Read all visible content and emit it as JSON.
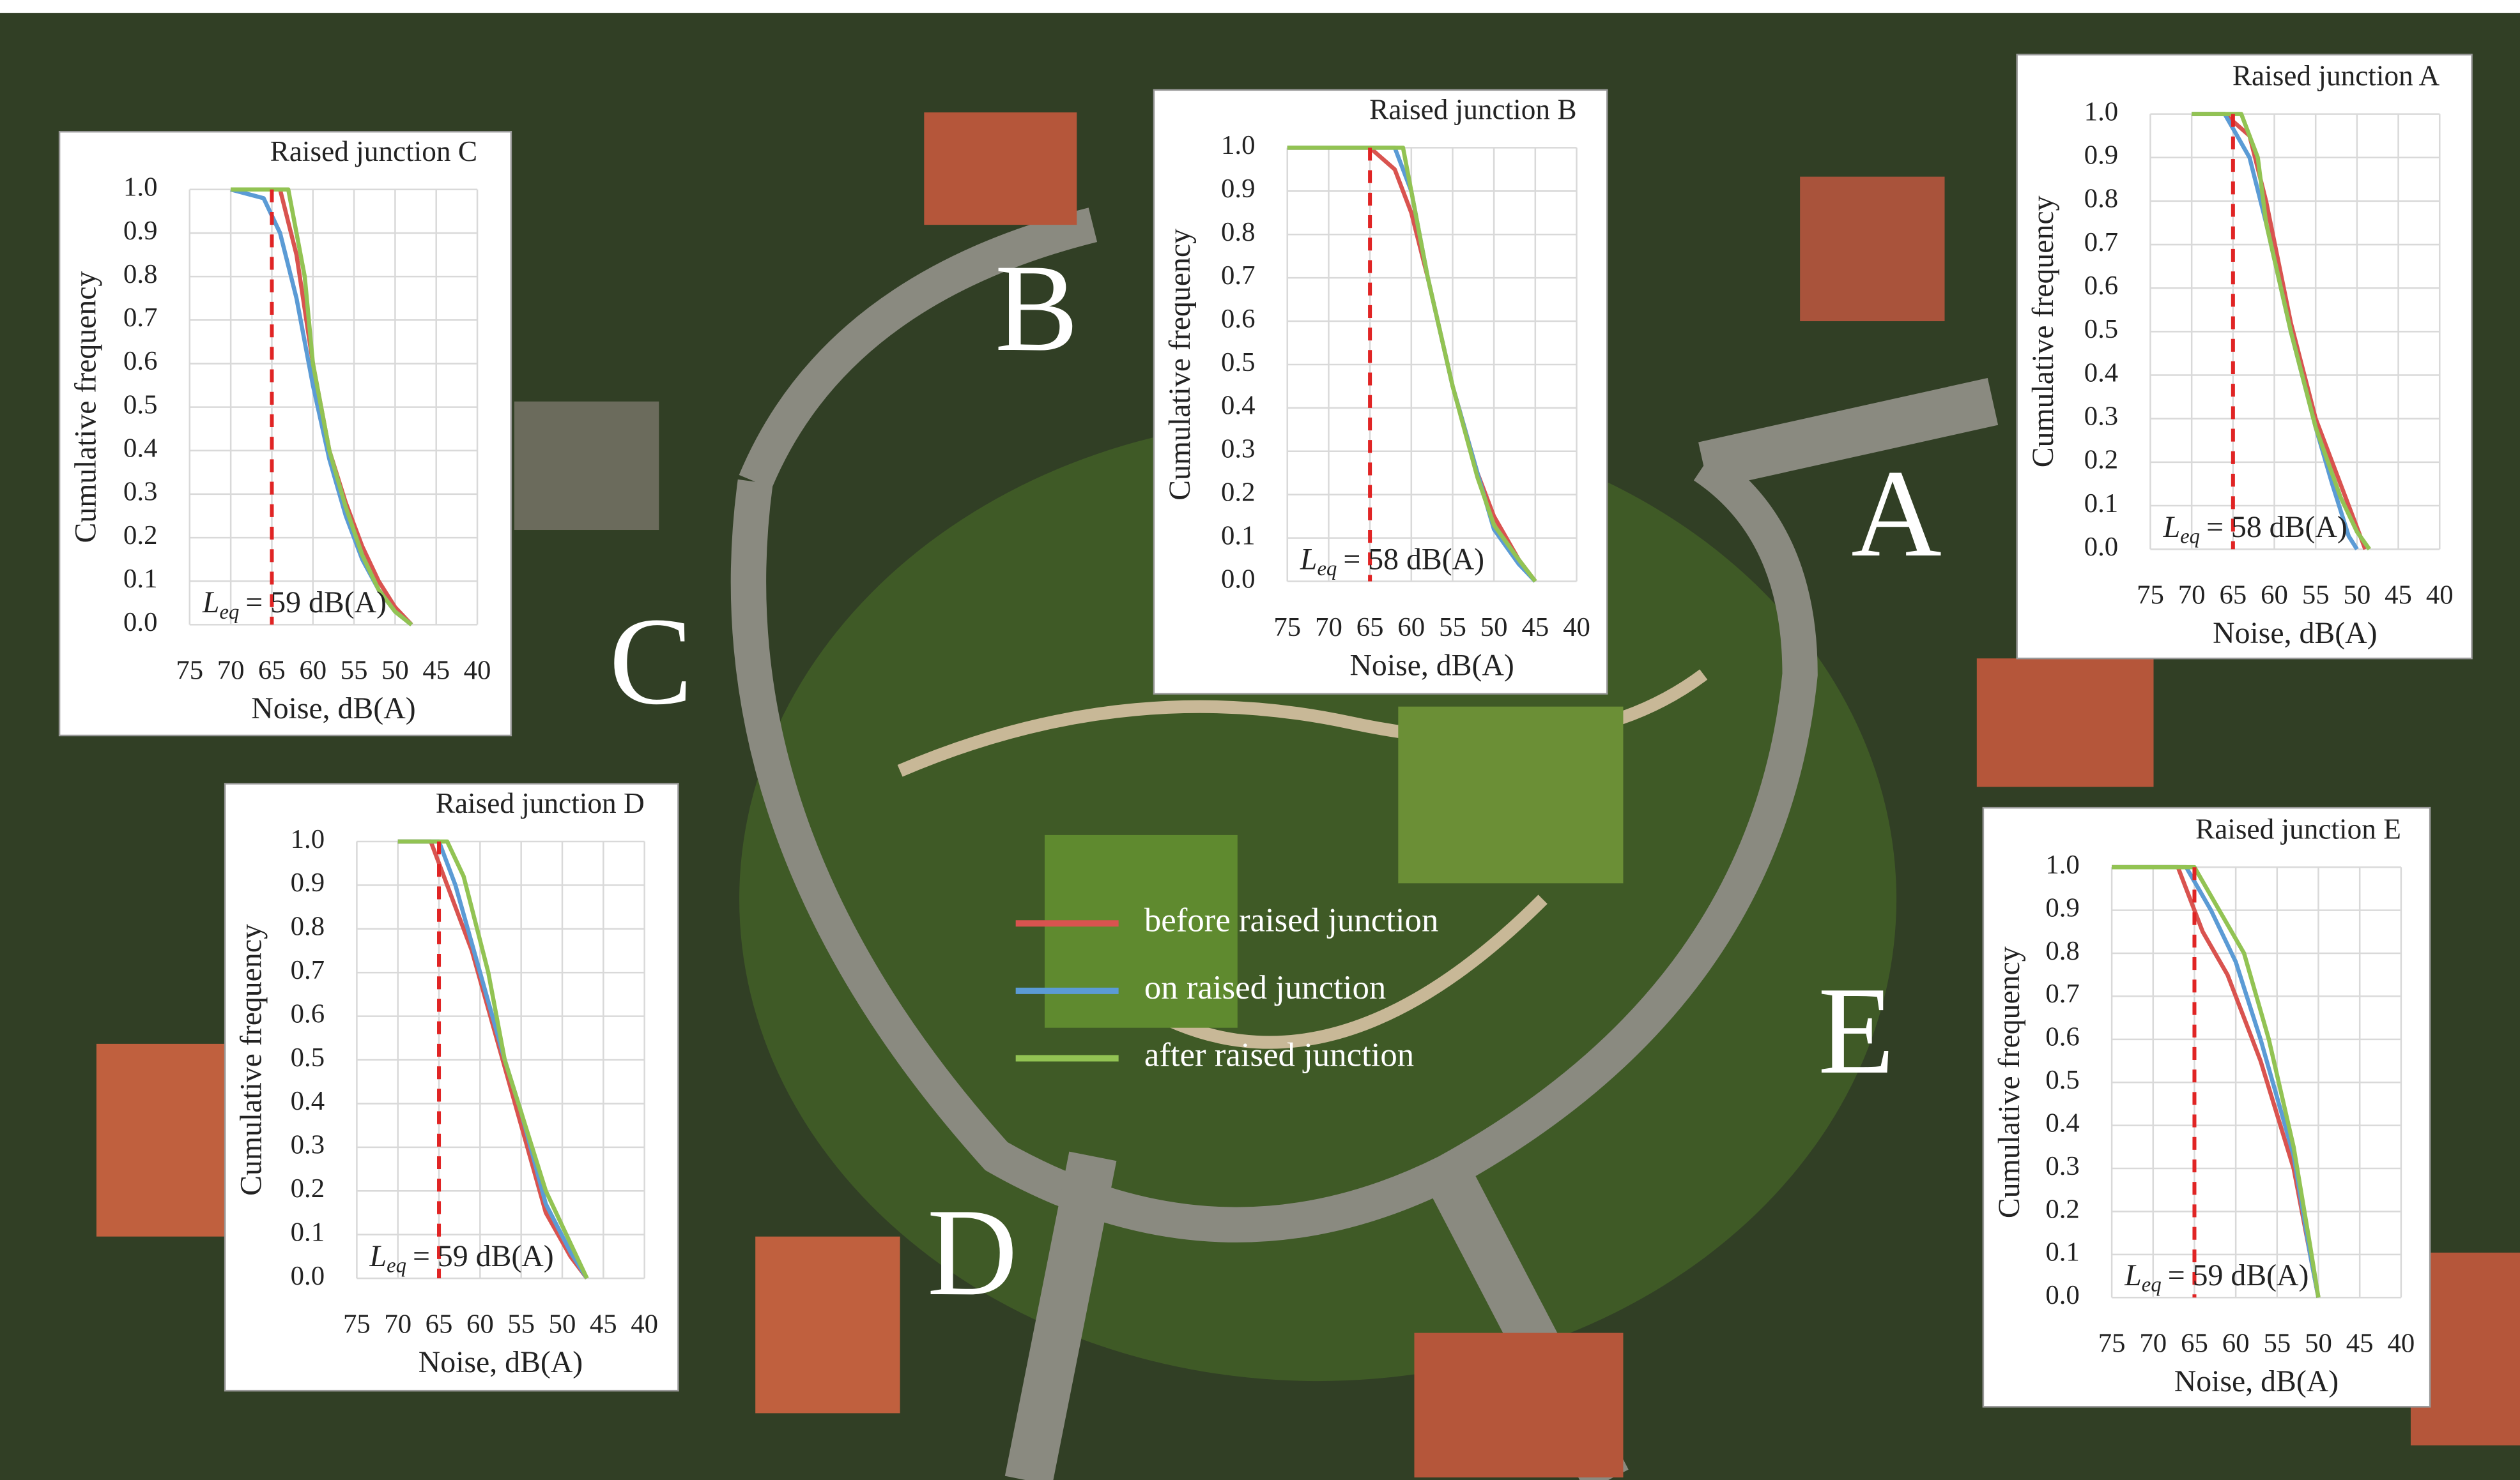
{
  "chart_data": [
    {
      "type": "line",
      "title": "Raised junction A",
      "xlabel": "Noise, dB(A)",
      "ylabel": "Cumulative frequency",
      "xlim": [
        75,
        40
      ],
      "xticks": [
        75,
        70,
        65,
        60,
        55,
        50,
        45,
        40
      ],
      "ylim": [
        0,
        1
      ],
      "yticks": [
        {
          "value": 0,
          "label": "0.0"
        },
        {
          "value": 0.1,
          "label": "0.1"
        },
        {
          "value": 0.2,
          "label": "0.2"
        },
        {
          "value": 0.3,
          "label": "0.3"
        },
        {
          "value": 0.4,
          "label": "0.4"
        },
        {
          "value": 0.5,
          "label": "0.5"
        },
        {
          "value": 0.6,
          "label": "0.6"
        },
        {
          "value": 0.7,
          "label": "0.7"
        },
        {
          "value": 0.8,
          "label": "0.8"
        },
        {
          "value": 0.9,
          "label": "0.9"
        },
        {
          "value": 1,
          "label": "1.0"
        }
      ],
      "grid": true,
      "annotation": {
        "symbol": "L",
        "subscript": "eq",
        "text": "= 58 dB(A)"
      },
      "reference_line": {
        "x": 65,
        "color": "#e02424"
      },
      "series": [
        {
          "color": "#d9534f",
          "x": [
            70,
            66,
            63,
            61,
            58,
            55,
            52,
            50,
            49
          ],
          "values": [
            1,
            1,
            0.95,
            0.8,
            0.52,
            0.3,
            0.15,
            0.05,
            0
          ]
        },
        {
          "color": "#5b9bd5",
          "x": [
            70,
            66,
            63,
            61,
            58,
            55,
            53,
            51,
            50
          ],
          "values": [
            1,
            1,
            0.9,
            0.75,
            0.5,
            0.28,
            0.15,
            0.03,
            0
          ]
        },
        {
          "color": "#92c353",
          "x": [
            70,
            64,
            62,
            61,
            58,
            55,
            52,
            50,
            48.5
          ],
          "values": [
            1,
            1,
            0.9,
            0.75,
            0.5,
            0.28,
            0.12,
            0.04,
            0
          ]
        }
      ]
    },
    {
      "type": "line",
      "title": "Raised junction B",
      "xlabel": "Noise, dB(A)",
      "ylabel": "Cumulative frequency",
      "xlim": [
        75,
        40
      ],
      "xticks": [
        75,
        70,
        65,
        60,
        55,
        50,
        45,
        40
      ],
      "ylim": [
        0,
        1
      ],
      "yticks": [
        {
          "value": 0,
          "label": "0.0"
        },
        {
          "value": 0.1,
          "label": "0.1"
        },
        {
          "value": 0.2,
          "label": "0.2"
        },
        {
          "value": 0.3,
          "label": "0.3"
        },
        {
          "value": 0.4,
          "label": "0.4"
        },
        {
          "value": 0.5,
          "label": "0.5"
        },
        {
          "value": 0.6,
          "label": "0.6"
        },
        {
          "value": 0.7,
          "label": "0.7"
        },
        {
          "value": 0.8,
          "label": "0.8"
        },
        {
          "value": 0.9,
          "label": "0.9"
        },
        {
          "value": 1,
          "label": "1.0"
        }
      ],
      "grid": true,
      "annotation": {
        "symbol": "L",
        "subscript": "eq",
        "text": "= 58 dB(A)"
      },
      "reference_line": {
        "x": 65,
        "color": "#e02424"
      },
      "series": [
        {
          "color": "#d9534f",
          "x": [
            75,
            65,
            62,
            60,
            58,
            55,
            52,
            50,
            47,
            45
          ],
          "values": [
            1,
            1,
            0.95,
            0.85,
            0.7,
            0.45,
            0.25,
            0.15,
            0.05,
            0
          ]
        },
        {
          "color": "#5b9bd5",
          "x": [
            75,
            62,
            60,
            58,
            55,
            52,
            50,
            47,
            45
          ],
          "values": [
            1,
            1,
            0.9,
            0.7,
            0.45,
            0.25,
            0.12,
            0.04,
            0
          ]
        },
        {
          "color": "#92c353",
          "x": [
            75,
            61,
            60,
            58,
            55,
            52,
            50,
            47,
            45
          ],
          "values": [
            1,
            1,
            0.9,
            0.7,
            0.45,
            0.24,
            0.13,
            0.05,
            0
          ]
        }
      ]
    },
    {
      "type": "line",
      "title": "Raised junction C",
      "xlabel": "Noise, dB(A)",
      "ylabel": "Cumulative frequency",
      "xlim": [
        75,
        40
      ],
      "xticks": [
        75,
        70,
        65,
        60,
        55,
        50,
        45,
        40
      ],
      "ylim": [
        0,
        1
      ],
      "yticks": [
        {
          "value": 0,
          "label": "0.0"
        },
        {
          "value": 0.1,
          "label": "0.1"
        },
        {
          "value": 0.2,
          "label": "0.2"
        },
        {
          "value": 0.3,
          "label": "0.3"
        },
        {
          "value": 0.4,
          "label": "0.4"
        },
        {
          "value": 0.5,
          "label": "0.5"
        },
        {
          "value": 0.6,
          "label": "0.6"
        },
        {
          "value": 0.7,
          "label": "0.7"
        },
        {
          "value": 0.8,
          "label": "0.8"
        },
        {
          "value": 0.9,
          "label": "0.9"
        },
        {
          "value": 1,
          "label": "1.0"
        }
      ],
      "grid": true,
      "annotation": {
        "symbol": "L",
        "subscript": "eq",
        "text": "= 59 dB(A)"
      },
      "reference_line": {
        "x": 65,
        "color": "#e02424"
      },
      "series": [
        {
          "color": "#d9534f",
          "x": [
            70,
            64,
            62,
            60,
            58,
            56,
            54,
            52,
            50,
            48
          ],
          "values": [
            1,
            1,
            0.85,
            0.6,
            0.4,
            0.28,
            0.18,
            0.1,
            0.04,
            0
          ]
        },
        {
          "color": "#5b9bd5",
          "x": [
            70,
            66,
            64,
            62,
            60,
            58,
            56,
            54,
            52,
            50,
            48
          ],
          "values": [
            1,
            0.98,
            0.9,
            0.75,
            0.55,
            0.38,
            0.25,
            0.15,
            0.08,
            0.03,
            0
          ]
        },
        {
          "color": "#92c353",
          "x": [
            70,
            63,
            61,
            60,
            58,
            56,
            54,
            52,
            50,
            48
          ],
          "values": [
            1,
            1,
            0.8,
            0.6,
            0.4,
            0.27,
            0.16,
            0.08,
            0.03,
            0
          ]
        }
      ]
    },
    {
      "type": "line",
      "title": "Raised junction D",
      "xlabel": "Noise, dB(A)",
      "ylabel": "Cumulative frequency",
      "xlim": [
        75,
        40
      ],
      "xticks": [
        75,
        70,
        65,
        60,
        55,
        50,
        45,
        40
      ],
      "ylim": [
        0,
        1
      ],
      "yticks": [
        {
          "value": 0,
          "label": "0.0"
        },
        {
          "value": 0.1,
          "label": "0.1"
        },
        {
          "value": 0.2,
          "label": "0.2"
        },
        {
          "value": 0.3,
          "label": "0.3"
        },
        {
          "value": 0.4,
          "label": "0.4"
        },
        {
          "value": 0.5,
          "label": "0.5"
        },
        {
          "value": 0.6,
          "label": "0.6"
        },
        {
          "value": 0.7,
          "label": "0.7"
        },
        {
          "value": 0.8,
          "label": "0.8"
        },
        {
          "value": 0.9,
          "label": "0.9"
        },
        {
          "value": 1,
          "label": "1.0"
        }
      ],
      "grid": true,
      "annotation": {
        "symbol": "L",
        "subscript": "eq",
        "text": "= 59 dB(A)"
      },
      "reference_line": {
        "x": 65,
        "color": "#e02424"
      },
      "series": [
        {
          "color": "#d9534f",
          "x": [
            70,
            66,
            64,
            61,
            58,
            55,
            52,
            49,
            47
          ],
          "values": [
            1,
            1,
            0.9,
            0.75,
            0.55,
            0.35,
            0.15,
            0.05,
            0
          ]
        },
        {
          "color": "#5b9bd5",
          "x": [
            70,
            65,
            63,
            60,
            57,
            55,
            52,
            49,
            47
          ],
          "values": [
            1,
            1,
            0.9,
            0.7,
            0.5,
            0.38,
            0.17,
            0.06,
            0
          ]
        },
        {
          "color": "#92c353",
          "x": [
            70,
            64,
            62,
            59,
            57,
            55,
            52,
            49,
            47
          ],
          "values": [
            1,
            1,
            0.92,
            0.7,
            0.5,
            0.38,
            0.2,
            0.08,
            0
          ]
        }
      ]
    },
    {
      "type": "line",
      "title": "Raised junction E",
      "xlabel": "Noise, dB(A)",
      "ylabel": "Cumulative frequency",
      "xlim": [
        75,
        40
      ],
      "xticks": [
        75,
        70,
        65,
        60,
        55,
        50,
        45,
        40
      ],
      "ylim": [
        0,
        1
      ],
      "yticks": [
        {
          "value": 0,
          "label": "0.0"
        },
        {
          "value": 0.1,
          "label": "0.1"
        },
        {
          "value": 0.2,
          "label": "0.2"
        },
        {
          "value": 0.3,
          "label": "0.3"
        },
        {
          "value": 0.4,
          "label": "0.4"
        },
        {
          "value": 0.5,
          "label": "0.5"
        },
        {
          "value": 0.6,
          "label": "0.6"
        },
        {
          "value": 0.7,
          "label": "0.7"
        },
        {
          "value": 0.8,
          "label": "0.8"
        },
        {
          "value": 0.9,
          "label": "0.9"
        },
        {
          "value": 1,
          "label": "1.0"
        }
      ],
      "grid": true,
      "annotation": {
        "symbol": "L",
        "subscript": "eq",
        "text": "= 59 dB(A)"
      },
      "reference_line": {
        "x": 65,
        "color": "#e02424"
      },
      "series": [
        {
          "color": "#d9534f",
          "x": [
            75,
            67,
            64,
            61,
            57,
            53,
            51,
            50
          ],
          "values": [
            1,
            1,
            0.85,
            0.75,
            0.55,
            0.3,
            0.1,
            0
          ]
        },
        {
          "color": "#5b9bd5",
          "x": [
            75,
            66,
            63,
            60,
            57,
            53,
            51,
            50
          ],
          "values": [
            1,
            1,
            0.9,
            0.78,
            0.6,
            0.33,
            0.1,
            0
          ]
        },
        {
          "color": "#92c353",
          "x": [
            75,
            65,
            62,
            59,
            56,
            53,
            51,
            50
          ],
          "values": [
            1,
            1,
            0.9,
            0.8,
            0.6,
            0.35,
            0.12,
            0
          ]
        }
      ]
    }
  ],
  "legend": {
    "items": [
      {
        "name": "before raised junction",
        "color": "#d9534f"
      },
      {
        "name": "on raised junction",
        "color": "#5b9bd5"
      },
      {
        "name": "after raised junction",
        "color": "#92c353"
      }
    ]
  },
  "map_labels": [
    "A",
    "B",
    "C",
    "D",
    "E"
  ]
}
